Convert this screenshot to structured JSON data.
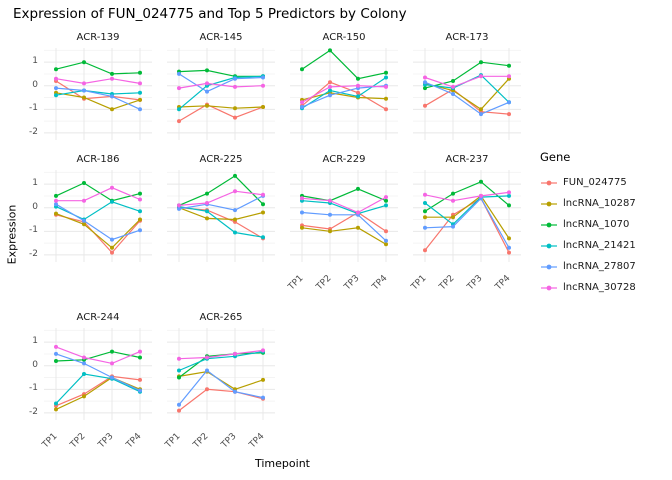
{
  "chart_data": {
    "type": "line",
    "title": "Expression of FUN_024775 and Top 5 Predictors by Colony",
    "facet_variable": "Colony",
    "x": [
      "TP1",
      "TP2",
      "TP3",
      "TP4"
    ],
    "xlabel": "Timepoint",
    "ylabel": "Expression",
    "ylim": [
      -2.3,
      1.6
    ],
    "yticks": [
      1,
      0,
      -1,
      -2
    ],
    "grid": true,
    "legend_title": "Gene",
    "legend_position": "right",
    "series": [
      {
        "name": "FUN_024775",
        "color": "#F8766D"
      },
      {
        "name": "lncRNA_10287",
        "color": "#B79F00"
      },
      {
        "name": "lncRNA_1070",
        "color": "#00BA38"
      },
      {
        "name": "lncRNA_21421",
        "color": "#00BFC4"
      },
      {
        "name": "lncRNA_27807",
        "color": "#619CFF"
      },
      {
        "name": "lncRNA_30728",
        "color": "#F564E3"
      }
    ],
    "facets": [
      {
        "label": "ACR-139",
        "values": [
          [
            0.2,
            -0.55,
            -0.45,
            -0.6
          ],
          [
            -0.3,
            -0.5,
            -1.0,
            -0.6
          ],
          [
            0.7,
            1.0,
            0.5,
            0.55
          ],
          [
            -0.4,
            -0.2,
            -0.35,
            -0.3
          ],
          [
            -0.1,
            -0.2,
            -0.45,
            -1.0
          ],
          [
            0.3,
            0.1,
            0.3,
            0.1
          ]
        ]
      },
      {
        "label": "ACR-145",
        "values": [
          [
            -1.5,
            -0.8,
            -1.35,
            -0.9
          ],
          [
            -0.9,
            -0.85,
            -0.95,
            -0.9
          ],
          [
            0.6,
            0.65,
            0.4,
            0.4
          ],
          [
            -1.0,
            0.0,
            0.35,
            0.4
          ],
          [
            0.5,
            -0.25,
            0.3,
            0.35
          ],
          [
            -0.1,
            0.1,
            -0.05,
            0.0
          ]
        ]
      },
      {
        "label": "ACR-150",
        "values": [
          [
            -0.85,
            0.15,
            -0.3,
            -1.0
          ],
          [
            -0.6,
            -0.3,
            -0.5,
            -0.55
          ],
          [
            0.7,
            1.5,
            0.3,
            0.55
          ],
          [
            -0.95,
            -0.2,
            -0.45,
            0.35
          ],
          [
            -0.9,
            -0.4,
            -0.1,
            0.0
          ],
          [
            -0.7,
            -0.05,
            0.0,
            -0.05
          ]
        ]
      },
      {
        "label": "ACR-173",
        "values": [
          [
            -0.85,
            -0.15,
            -1.1,
            -1.2
          ],
          [
            0.1,
            -0.2,
            -1.0,
            0.3
          ],
          [
            -0.1,
            0.2,
            1.0,
            0.85
          ],
          [
            0.05,
            -0.1,
            0.45,
            -0.7
          ],
          [
            0.15,
            -0.35,
            -1.2,
            -0.7
          ],
          [
            0.35,
            -0.05,
            0.4,
            0.4
          ]
        ]
      },
      {
        "label": "ACR-186",
        "values": [
          [
            -0.3,
            -0.6,
            -1.9,
            -0.55
          ],
          [
            -0.25,
            -0.7,
            -1.7,
            -0.5
          ],
          [
            0.5,
            1.05,
            0.3,
            0.6
          ],
          [
            0.05,
            -0.5,
            0.25,
            -0.15
          ],
          [
            0.15,
            -0.55,
            -1.35,
            -0.95
          ],
          [
            0.3,
            0.3,
            0.85,
            0.35
          ]
        ]
      },
      {
        "label": "ACR-225",
        "values": [
          [
            0.0,
            -0.1,
            -0.6,
            -1.3
          ],
          [
            0.0,
            -0.45,
            -0.5,
            -0.2
          ],
          [
            0.1,
            0.6,
            1.35,
            0.15
          ],
          [
            0.05,
            -0.15,
            -1.05,
            -1.25
          ],
          [
            -0.05,
            0.15,
            -0.1,
            0.5
          ],
          [
            0.1,
            0.2,
            0.7,
            0.55
          ]
        ]
      },
      {
        "label": "ACR-229",
        "values": [
          [
            -0.75,
            -0.9,
            -0.2,
            -1.0
          ],
          [
            -0.85,
            -1.0,
            -0.85,
            -1.55
          ],
          [
            0.5,
            0.3,
            0.8,
            0.3
          ],
          [
            0.3,
            0.2,
            -0.25,
            0.1
          ],
          [
            -0.2,
            -0.3,
            -0.3,
            -1.4
          ],
          [
            0.4,
            0.3,
            -0.2,
            0.45
          ]
        ]
      },
      {
        "label": "ACR-237",
        "values": [
          [
            -1.8,
            -0.3,
            0.4,
            -1.9
          ],
          [
            -0.4,
            -0.4,
            0.5,
            -1.3
          ],
          [
            -0.15,
            0.6,
            1.1,
            0.1
          ],
          [
            0.2,
            -0.7,
            0.45,
            0.5
          ],
          [
            -0.85,
            -0.8,
            0.4,
            -1.7
          ],
          [
            0.55,
            0.3,
            0.5,
            0.65
          ]
        ]
      },
      {
        "label": "ACR-244",
        "values": [
          [
            -1.7,
            -1.2,
            -0.45,
            -0.6
          ],
          [
            -1.85,
            -1.3,
            -0.5,
            -1.0
          ],
          [
            0.2,
            0.25,
            0.6,
            0.35
          ],
          [
            -1.6,
            -0.35,
            -0.55,
            -1.1
          ],
          [
            0.5,
            0.1,
            -0.5,
            -1.05
          ],
          [
            0.8,
            0.35,
            0.1,
            0.6
          ]
        ]
      },
      {
        "label": "ACR-265",
        "values": [
          [
            -1.9,
            -1.0,
            -1.1,
            -1.4
          ],
          [
            -0.45,
            -0.25,
            -1.0,
            -0.6
          ],
          [
            -0.5,
            0.4,
            0.5,
            0.55
          ],
          [
            -0.2,
            0.3,
            0.4,
            0.6
          ],
          [
            -1.65,
            -0.2,
            -1.1,
            -1.35
          ],
          [
            0.3,
            0.35,
            0.5,
            0.65
          ]
        ]
      }
    ]
  }
}
